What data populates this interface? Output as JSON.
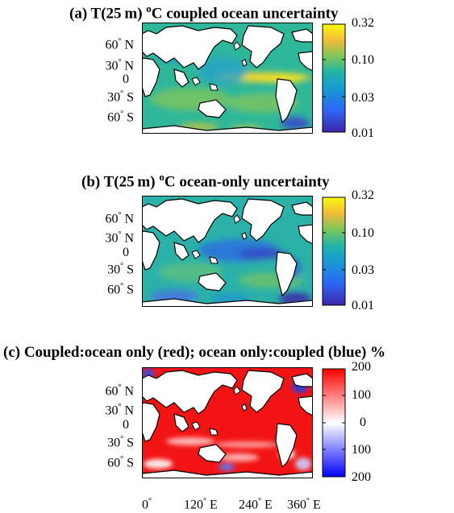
{
  "panels": [
    {
      "id": "a",
      "title_pre": "(a) T(25 m) ",
      "title_sup": "o",
      "title_post": "C coupled ocean uncertainty",
      "colormap": "parula",
      "colorbar_ticks": [
        "0.32",
        "0.10",
        "0.03",
        "0.01"
      ],
      "colorbar_scale": "log"
    },
    {
      "id": "b",
      "title_pre": "(b) T(25 m) ",
      "title_sup": "o",
      "title_post": "C ocean-only uncertainty",
      "colormap": "parula",
      "colorbar_ticks": [
        "0.32",
        "0.10",
        "0.03",
        "0.01"
      ],
      "colorbar_scale": "log"
    },
    {
      "id": "c",
      "title": "(c) Coupled:ocean only (red);  ocean only:coupled (blue) %",
      "colormap": "red-white-blue",
      "colorbar_ticks": [
        "200",
        "100",
        "0",
        "100",
        "200"
      ],
      "colorbar_scale": "linear"
    }
  ],
  "lat_labels": [
    {
      "deg": "60",
      "hemi": "N"
    },
    {
      "deg": "30",
      "hemi": "N"
    },
    {
      "deg": "0",
      "hemi": ""
    },
    {
      "deg": "30",
      "hemi": "S"
    },
    {
      "deg": "60",
      "hemi": "S"
    }
  ],
  "lon_labels": [
    {
      "deg": "0",
      "hemi": ""
    },
    {
      "deg": "120",
      "hemi": "E"
    },
    {
      "deg": "240",
      "hemi": "E"
    },
    {
      "deg": "360",
      "hemi": "E"
    }
  ],
  "colors": {
    "parula_low": "#3e26a8",
    "parula_mid": "#20b4aa",
    "parula_high": "#f9fb0e",
    "diverging_red": "#ff0000",
    "diverging_white": "#ffffff",
    "diverging_blue": "#0000ff",
    "land": "#ffffff",
    "coast": "#000000"
  }
}
